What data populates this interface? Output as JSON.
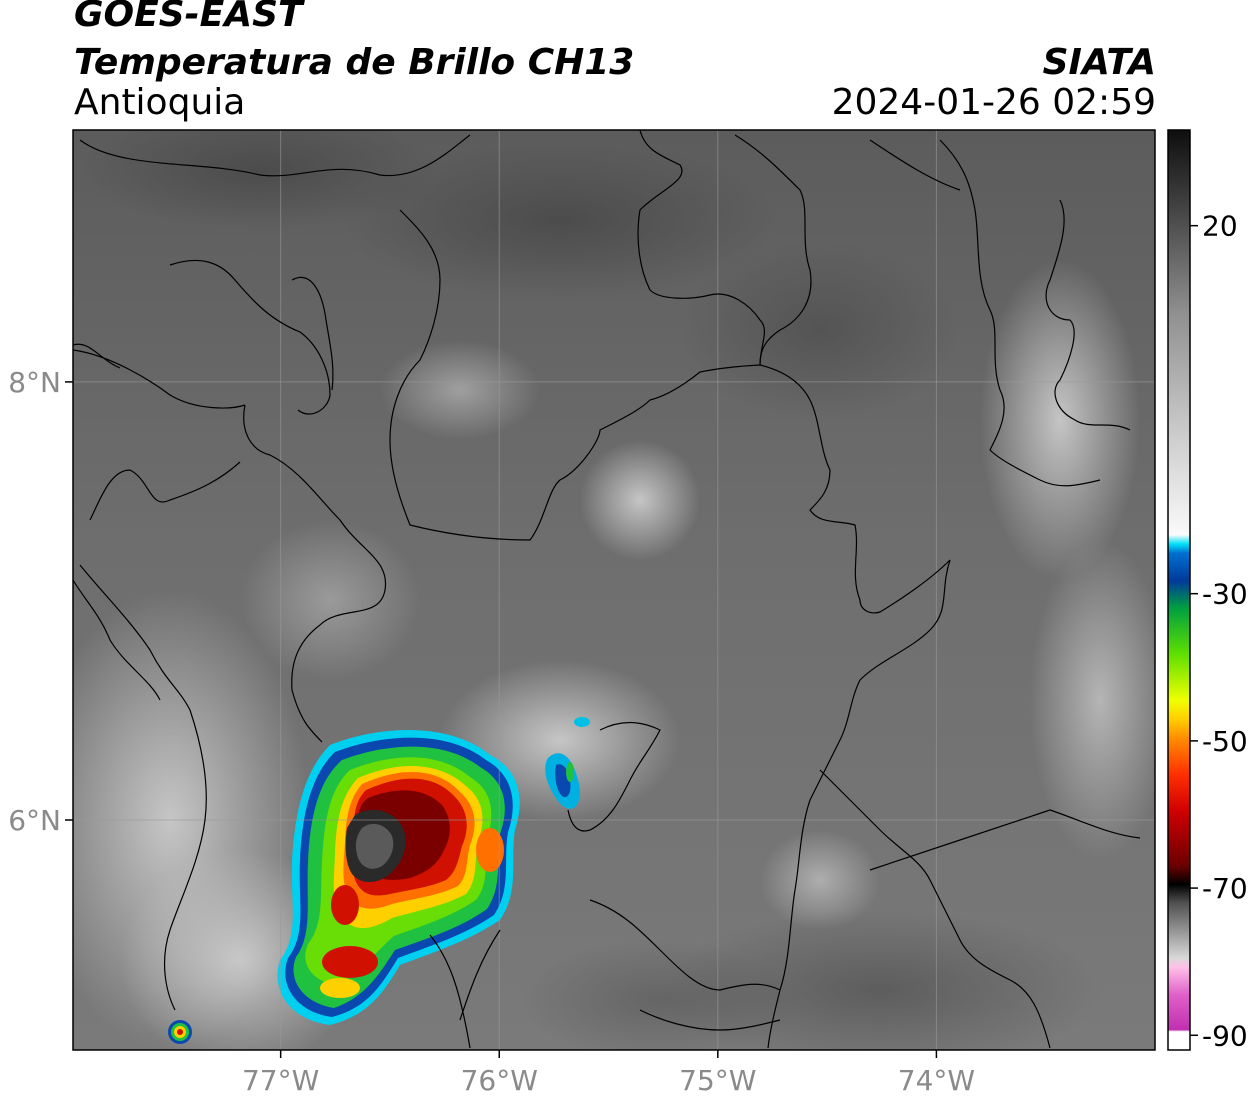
{
  "header": {
    "satellite": "GOES-EAST",
    "product": "Temperatura de Brillo CH13",
    "region": "Antioquia",
    "agency": "SIATA",
    "datetime": "2024-01-26 02:59"
  },
  "map": {
    "lon_ticks": [
      {
        "value": -77,
        "label": "77°W"
      },
      {
        "value": -76,
        "label": "76°W"
      },
      {
        "value": -75,
        "label": "75°W"
      },
      {
        "value": -74,
        "label": "74°W"
      }
    ],
    "lat_ticks": [
      {
        "value": 8,
        "label": "8°N"
      },
      {
        "value": 6,
        "label": "6°N"
      }
    ],
    "extent": {
      "lon_min": -77.95,
      "lon_max": -73.0,
      "lat_min": 4.95,
      "lat_max": 9.15
    }
  },
  "colorbar": {
    "ticks": [
      {
        "value": 20,
        "label": "20"
      },
      {
        "value": -30,
        "label": "-30"
      },
      {
        "value": -50,
        "label": "-50"
      },
      {
        "value": -70,
        "label": "-70"
      },
      {
        "value": -90,
        "label": "-90"
      }
    ],
    "range": [
      -92,
      33
    ],
    "colors": {
      "magenta": "#d040c0",
      "dark": "#111111",
      "red": "#c00000",
      "orange": "#ff8000",
      "yellow": "#ffee00",
      "green": "#20c020",
      "blue": "#003a9a",
      "cyan": "#00d8f0",
      "white": "#f6f6f6",
      "gray": "#707070",
      "black": "#111111"
    }
  }
}
